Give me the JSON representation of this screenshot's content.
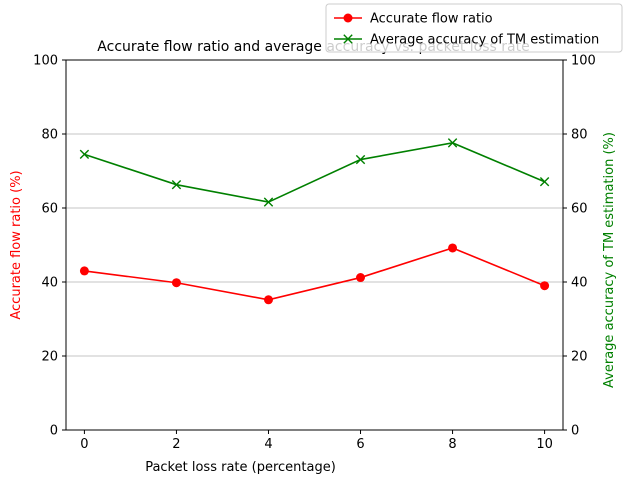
{
  "chart_data": {
    "type": "line",
    "title": "Accurate flow ratio and average accuracy vs. packet loss rate",
    "xlabel": "Packet loss rate (percentage)",
    "ylabel_left": "Accurate flow ratio (%)",
    "ylabel_right": "Average accuracy of TM estimation (%)",
    "x": [
      0,
      2,
      4,
      6,
      8,
      10
    ],
    "xticks": [
      "0",
      "2",
      "4",
      "6",
      "8",
      "10"
    ],
    "xlim": [
      -0.4,
      10.4
    ],
    "ylim_left": [
      0,
      100
    ],
    "ylim_right": [
      0,
      100
    ],
    "yticks": [
      "0",
      "20",
      "40",
      "60",
      "80",
      "100"
    ],
    "grid": "horizontal",
    "legend_position": "top-right",
    "colors": {
      "left_axis": "#ff0000",
      "right_axis": "#008000"
    },
    "series": [
      {
        "name": "Accurate flow ratio",
        "axis": "left",
        "marker": "circle",
        "color": "#ff0000",
        "values": [
          43.0,
          39.8,
          35.2,
          41.2,
          49.2,
          39.0
        ]
      },
      {
        "name": "Average accuracy of TM estimation",
        "axis": "right",
        "marker": "x",
        "color": "#008000",
        "values": [
          74.5,
          66.3,
          61.6,
          73.1,
          77.6,
          67.1
        ]
      }
    ]
  }
}
